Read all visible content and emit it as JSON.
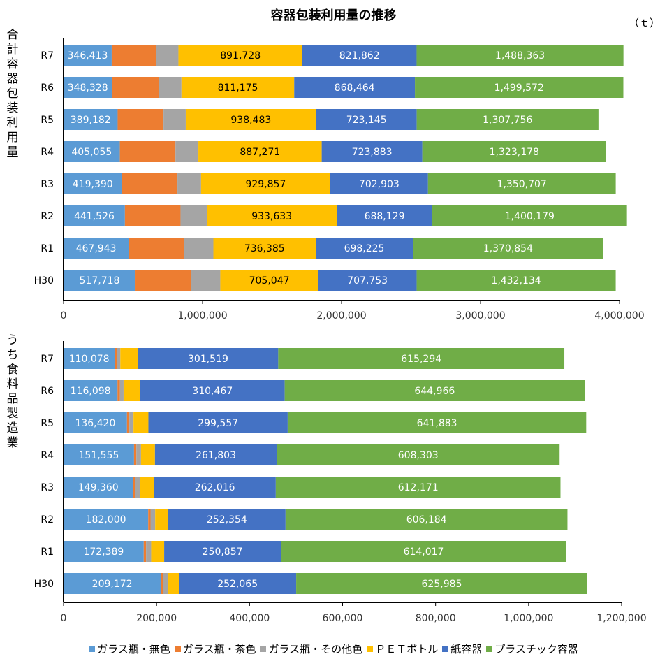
{
  "title": "容器包装利用量の推移",
  "unit": "（ｔ）",
  "colors": {
    "ガラス瓶・無色": "#5B9BD5",
    "ガラス瓶・茶色": "#ED7D31",
    "ガラス瓶・その他色": "#A5A5A5",
    "ＰＥＴボトル": "#FFC000",
    "紙容器": "#4472C4",
    "プラスチック容器": "#70AD47"
  },
  "legend": [
    "ガラス瓶・無色",
    "ガラス瓶・茶色",
    "ガラス瓶・その他色",
    "ＰＥＴボトル",
    "紙容器",
    "プラスチック容器"
  ],
  "chart_data": [
    {
      "type": "bar",
      "orientation": "horizontal",
      "stacked": true,
      "title": "容器包装利用量の推移",
      "ylabel": "合計容器包装利用量",
      "categories": [
        "R7",
        "R6",
        "R5",
        "R4",
        "R3",
        "R2",
        "R1",
        "H30"
      ],
      "xlim": [
        0,
        4000000
      ],
      "xticks": [
        "0",
        "1,000,000",
        "2,000,000",
        "3,000,000",
        "4,000,000"
      ],
      "series": [
        {
          "name": "ガラス瓶・無色",
          "values": [
            346413,
            348328,
            389182,
            405055,
            419390,
            441526,
            467943,
            517718
          ],
          "labels": [
            "346,413",
            "348,328",
            "389,182",
            "405,055",
            "419,390",
            "441,526",
            "467,943",
            "517,718"
          ]
        },
        {
          "name": "ガラス瓶・茶色",
          "values": [
            320000,
            340000,
            330000,
            400000,
            400000,
            400000,
            400000,
            400000
          ],
          "labels": []
        },
        {
          "name": "ガラス瓶・その他色",
          "values": [
            160000,
            160000,
            160000,
            165000,
            170000,
            190000,
            210000,
            210000
          ],
          "labels": []
        },
        {
          "name": "ＰＥＴボトル",
          "values": [
            891728,
            811175,
            938483,
            887271,
            929857,
            933633,
            736385,
            705047
          ],
          "labels": [
            "891,728",
            "811,175",
            "938,483",
            "887,271",
            "929,857",
            "933,633",
            "736,385",
            "705,047"
          ]
        },
        {
          "name": "紙容器",
          "values": [
            821862,
            868464,
            723145,
            723883,
            702903,
            688129,
            698225,
            707753
          ],
          "labels": [
            "821,862",
            "868,464",
            "723,145",
            "723,883",
            "702,903",
            "688,129",
            "698,225",
            "707,753"
          ]
        },
        {
          "name": "プラスチック容器",
          "values": [
            1488363,
            1499572,
            1307756,
            1323178,
            1350707,
            1400179,
            1370854,
            1432134
          ],
          "labels": [
            "1,488,363",
            "1,499,572",
            "1,307,756",
            "1,323,178",
            "1,350,707",
            "1,400,179",
            "1,370,854",
            "1,432,134"
          ]
        }
      ]
    },
    {
      "type": "bar",
      "orientation": "horizontal",
      "stacked": true,
      "ylabel": "うち食料品製造業",
      "categories": [
        "R7",
        "R6",
        "R5",
        "R4",
        "R3",
        "R2",
        "R1",
        "H30"
      ],
      "xlim": [
        0,
        1200000
      ],
      "xticks": [
        "0",
        "200,000",
        "400,000",
        "600,000",
        "800,000",
        "1,000,000",
        "1,200,000"
      ],
      "series": [
        {
          "name": "ガラス瓶・無色",
          "values": [
            110078,
            116098,
            136420,
            151555,
            149360,
            182000,
            172389,
            209172
          ],
          "labels": [
            "110,078",
            "116,098",
            "136,420",
            "151,555",
            "149,360",
            "182,000",
            "172,389",
            "209,172"
          ]
        },
        {
          "name": "ガラス瓶・茶色",
          "values": [
            5000,
            5000,
            5000,
            5000,
            5000,
            5000,
            5000,
            5000
          ],
          "labels": []
        },
        {
          "name": "ガラス瓶・その他色",
          "values": [
            7000,
            8000,
            9000,
            10000,
            10000,
            10000,
            11000,
            10000
          ],
          "labels": []
        },
        {
          "name": "ＰＥＴボトル",
          "values": [
            38000,
            36000,
            32000,
            30000,
            30000,
            28000,
            28000,
            24000
          ],
          "labels": []
        },
        {
          "name": "紙容器",
          "values": [
            301519,
            310467,
            299557,
            261803,
            262016,
            252354,
            250857,
            252065
          ],
          "labels": [
            "301,519",
            "310,467",
            "299,557",
            "261,803",
            "262,016",
            "252,354",
            "250,857",
            "252,065"
          ]
        },
        {
          "name": "プラスチック容器",
          "values": [
            615294,
            644966,
            641883,
            608303,
            612171,
            606184,
            614017,
            625985
          ],
          "labels": [
            "615,294",
            "644,966",
            "641,883",
            "608,303",
            "612,171",
            "606,184",
            "614,017",
            "625,985"
          ]
        }
      ]
    }
  ]
}
